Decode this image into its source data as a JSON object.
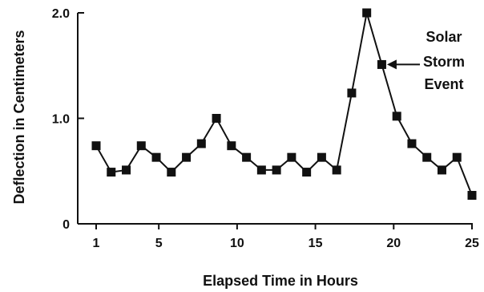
{
  "chart_data": {
    "type": "line",
    "xlabel": "Elapsed Time in Hours",
    "ylabel": "Deflection in Centimeters",
    "xlim": [
      0,
      25
    ],
    "ylim": [
      0,
      2.0
    ],
    "x_ticks": [
      1,
      5,
      10,
      15,
      20,
      25
    ],
    "x_tick_labels": [
      "1",
      "5",
      "10",
      "15",
      "20",
      "25"
    ],
    "y_ticks": [
      0,
      1.0,
      2.0
    ],
    "y_tick_labels": [
      "0",
      "1.0",
      "2.0"
    ],
    "grid": false,
    "legend": "none",
    "marker": "square",
    "color": "#111111",
    "series": [
      {
        "x": [
          1,
          2,
          3,
          4,
          5,
          6,
          7,
          8,
          9,
          10,
          11,
          12,
          13,
          14,
          15,
          16,
          17,
          18,
          19,
          20,
          21,
          22,
          23,
          24,
          25,
          26
        ],
        "y": [
          0.74,
          0.49,
          0.51,
          0.74,
          0.63,
          0.49,
          0.63,
          0.76,
          1.0,
          0.74,
          0.63,
          0.51,
          0.51,
          0.63,
          0.49,
          0.63,
          0.51,
          1.24,
          2.0,
          1.51,
          1.02,
          0.76,
          0.63,
          0.51,
          0.63,
          0.27
        ]
      }
    ],
    "annotations": [
      {
        "lines": [
          "Solar",
          "Storm",
          "Event"
        ],
        "x": 20,
        "y": 1.51
      }
    ]
  }
}
